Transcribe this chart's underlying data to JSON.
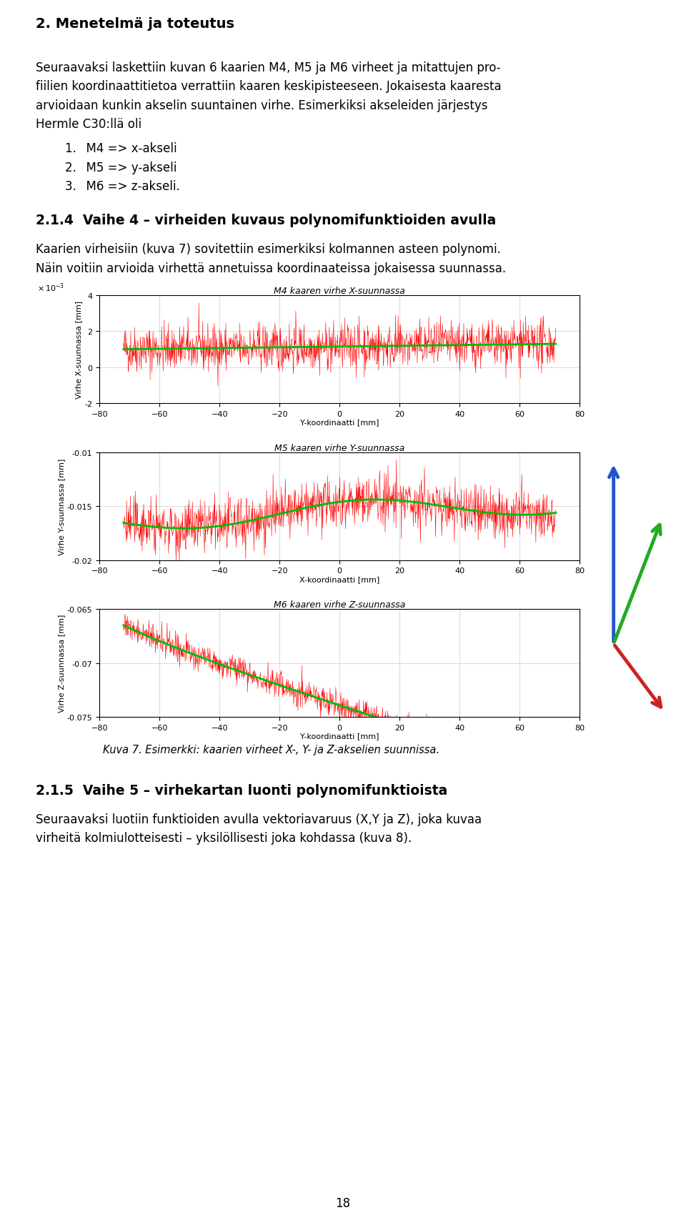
{
  "page_title": "2. Menetelmä ja toteutus",
  "para1_lines": [
    "Seuraavaksi laskettiin kuvan 6 kaarien M4, M5 ja M6 virheet ja mitattujen pro-",
    "fiilien koordinaattitietoa verrattiin kaaren keskipisteeseen. Jokaisesta kaaresta",
    "arvioidaan kunkin akselin suuntainen virhe. Esimerkiksi akseleiden järjestys",
    "Hermle C30:llä oli"
  ],
  "list_items": [
    "M4 => x-akseli",
    "M5 => y-akseli",
    "M6 => z-akseli."
  ],
  "section_title": "2.1.4  Vaihe 4 – virheiden kuvaus polynomifunktioiden avulla",
  "para2_lines": [
    "Kaarien virheisiin (kuva 7) sovitettiin esimerkiksi kolmannen asteen polynomi.",
    "Näin voitiin arvioida virhettä annetuissa koordinaateissa jokaisessa suunnassa."
  ],
  "plot_title_1": "M4 kaaren virhe X-suunnassa",
  "plot_ylabel_1": "Virhe X-suunnassa [mm]",
  "plot_xlabel_1": "Y-koordinaatti [mm]",
  "plot_ylim_1": [
    -0.002,
    0.004
  ],
  "plot_yticks_1": [
    -0.002,
    0,
    0.002,
    0.004
  ],
  "plot_yticklabels_1": [
    "-2",
    "0",
    "2",
    "4"
  ],
  "plot_title_2": "M5 kaaren virhe Y-suunnassa",
  "plot_ylabel_2": "Virhe Y-suunnassa [mm]",
  "plot_xlabel_2": "X-koordinaatti [mm]",
  "plot_ylim_2": [
    -0.02,
    -0.01
  ],
  "plot_yticks_2": [
    -0.02,
    -0.015,
    -0.01
  ],
  "plot_yticklabels_2": [
    "-0.02",
    "-0.015",
    "-0.01"
  ],
  "plot_title_3": "M6 kaaren virhe Z-suunnassa",
  "plot_ylabel_3": "Virhe Z-suunnassa [mm]",
  "plot_xlabel_3": "Y-koordinaatti [mm]",
  "plot_ylim_3": [
    -0.075,
    -0.065
  ],
  "plot_yticks_3": [
    -0.075,
    -0.07,
    -0.065
  ],
  "plot_yticklabels_3": [
    "-0.075",
    "-0.07",
    "-0.065"
  ],
  "xlim": [
    -80,
    80
  ],
  "xticks": [
    -80,
    -60,
    -40,
    -20,
    0,
    20,
    40,
    60,
    80
  ],
  "caption": "Kuva 7. Esimerkki: kaarien virheet X-, Y- ja Z-akselien suunnissa.",
  "section_title_2": "2.1.5  Vaihe 5 – virhekartan luonti polynomifunktioista",
  "para3_lines": [
    "Seuraavaksi luotiin funktioiden avulla vektoriavaruus (X,Y ja Z), joka kuvaa",
    "virheitä kolmiulotteisesti – yksilöllisesti joka kohdassa (kuva 8)."
  ],
  "page_number": "18",
  "background_color": "#ffffff",
  "text_color": "#000000",
  "red_color": "#ff0000",
  "green_color": "#00bb00",
  "noise_seed": 42,
  "title_fontsize": 14,
  "body_fontsize": 12,
  "section_fontsize": 13.5
}
